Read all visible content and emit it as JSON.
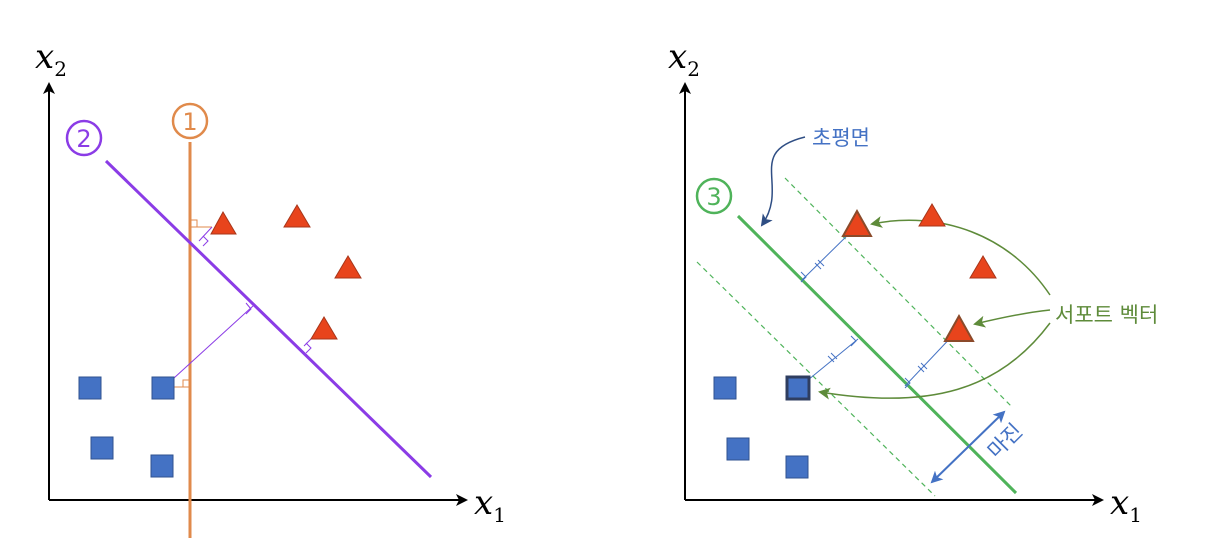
{
  "left_panel": {
    "x_axis": {
      "var": "x",
      "sub": "1"
    },
    "y_axis": {
      "var": "x",
      "sub": "2"
    },
    "line1_label": "1",
    "line2_label": "2"
  },
  "right_panel": {
    "x_axis": {
      "var": "x",
      "sub": "1"
    },
    "y_axis": {
      "var": "x",
      "sub": "2"
    },
    "line3_label": "3",
    "hyperplane_label": "초평면",
    "support_vector_label": "서포트 벡터",
    "margin_label": "마진"
  },
  "colors": {
    "orange": "#E08A4B",
    "purple": "#8B3CE6",
    "green": "#4FB35A",
    "blue": "#4472C4",
    "triangle": "#E8441C",
    "support_arrow": "#5E8B3A",
    "hyperplane_arrow": "#2F4E84"
  }
}
